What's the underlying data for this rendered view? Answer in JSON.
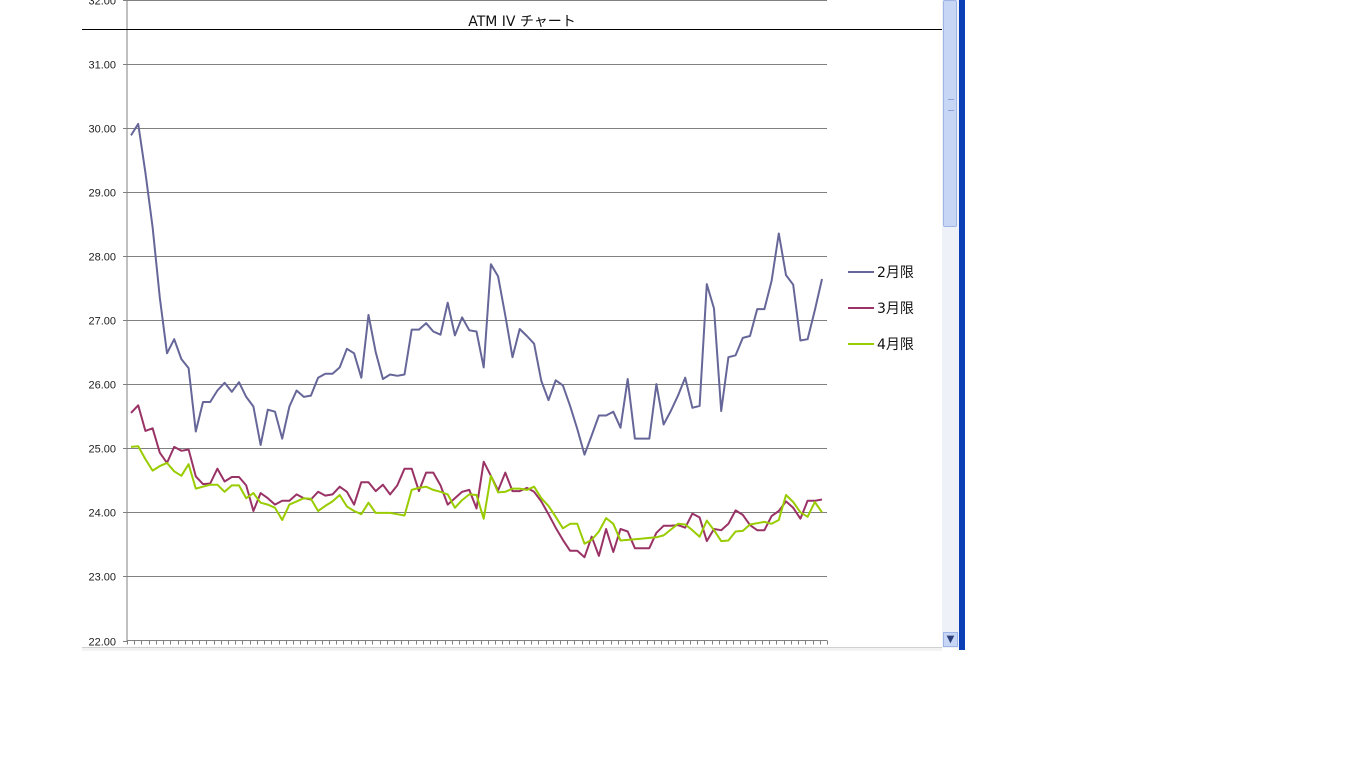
{
  "chart_data": {
    "type": "line",
    "title": "ATM IV チャート",
    "ylim": [
      22,
      32
    ],
    "yticks": [
      "22.00",
      "23.00",
      "24.00",
      "25.00",
      "26.00",
      "27.00",
      "28.00",
      "29.00",
      "30.00",
      "31.00",
      "32.00"
    ],
    "grid": true,
    "legend_position": "right",
    "series": [
      {
        "name": "2月限",
        "color": "#666699",
        "values": [
          29.88,
          30.06,
          29.3,
          28.45,
          27.35,
          26.48,
          26.7,
          26.39,
          26.25,
          25.26,
          25.72,
          25.72,
          25.9,
          26.02,
          25.88,
          26.03,
          25.8,
          25.65,
          25.05,
          25.6,
          25.57,
          25.15,
          25.65,
          25.9,
          25.8,
          25.82,
          26.1,
          26.16,
          26.16,
          26.26,
          26.55,
          26.48,
          26.1,
          27.08,
          26.5,
          26.08,
          26.15,
          26.13,
          26.15,
          26.85,
          26.85,
          26.95,
          26.82,
          26.77,
          27.27,
          26.76,
          27.04,
          26.84,
          26.82,
          26.26,
          27.87,
          27.68,
          27.07,
          26.42,
          26.86,
          26.75,
          26.63,
          26.05,
          25.75,
          26.06,
          25.98,
          25.66,
          25.3,
          24.9,
          25.2,
          25.51,
          25.51,
          25.57,
          25.32,
          26.08,
          25.15,
          25.15,
          25.15,
          26.0,
          25.37,
          25.58,
          25.82,
          26.1,
          25.63,
          25.66,
          27.56,
          27.18,
          25.58,
          26.42,
          26.45,
          26.72,
          26.75,
          27.17,
          27.17,
          27.61,
          28.35,
          27.7,
          27.55,
          26.68,
          26.7,
          27.15,
          27.64
        ]
      },
      {
        "name": "3月限",
        "color": "#993366",
        "values": [
          25.55,
          25.67,
          25.27,
          25.31,
          24.93,
          24.77,
          25.02,
          24.96,
          24.98,
          24.56,
          24.44,
          24.45,
          24.68,
          24.48,
          24.55,
          24.55,
          24.42,
          24.02,
          24.3,
          24.22,
          24.12,
          24.18,
          24.18,
          24.28,
          24.22,
          24.2,
          24.32,
          24.26,
          24.28,
          24.4,
          24.32,
          24.12,
          24.47,
          24.47,
          24.33,
          24.43,
          24.28,
          24.42,
          24.68,
          24.68,
          24.33,
          24.62,
          24.62,
          24.42,
          24.12,
          24.22,
          24.32,
          24.35,
          24.06,
          24.79,
          24.57,
          24.34,
          24.62,
          24.33,
          24.33,
          24.38,
          24.32,
          24.17,
          23.97,
          23.76,
          23.57,
          23.4,
          23.4,
          23.3,
          23.62,
          23.32,
          23.74,
          23.38,
          23.74,
          23.7,
          23.44,
          23.44,
          23.44,
          23.68,
          23.79,
          23.79,
          23.8,
          23.76,
          23.98,
          23.92,
          23.55,
          23.74,
          23.72,
          23.82,
          24.03,
          23.96,
          23.8,
          23.72,
          23.72,
          23.94,
          24.02,
          24.17,
          24.07,
          23.9,
          24.18,
          24.18,
          24.2
        ]
      },
      {
        "name": "4月限",
        "color": "#99cc00",
        "values": [
          25.02,
          25.03,
          24.83,
          24.65,
          24.72,
          24.77,
          24.64,
          24.57,
          24.75,
          24.37,
          24.4,
          24.43,
          24.43,
          24.32,
          24.42,
          24.42,
          24.22,
          24.3,
          24.15,
          24.12,
          24.07,
          23.88,
          24.12,
          24.17,
          24.22,
          24.21,
          24.02,
          24.1,
          24.17,
          24.27,
          24.09,
          24.02,
          23.97,
          24.15,
          23.99,
          23.99,
          23.99,
          23.97,
          23.95,
          24.35,
          24.38,
          24.4,
          24.35,
          24.32,
          24.28,
          24.07,
          24.19,
          24.28,
          24.27,
          23.9,
          24.57,
          24.31,
          24.32,
          24.37,
          24.37,
          24.35,
          24.4,
          24.22,
          24.1,
          23.93,
          23.75,
          23.82,
          23.82,
          23.51,
          23.57,
          23.7,
          23.91,
          23.82,
          23.56,
          23.57,
          23.58,
          23.59,
          23.6,
          23.61,
          23.64,
          23.73,
          23.82,
          23.81,
          23.72,
          23.62,
          23.87,
          23.72,
          23.55,
          23.56,
          23.7,
          23.71,
          23.81,
          23.83,
          23.85,
          23.82,
          23.88,
          24.27,
          24.16,
          24.0,
          23.93,
          24.16,
          24.0
        ]
      }
    ]
  }
}
